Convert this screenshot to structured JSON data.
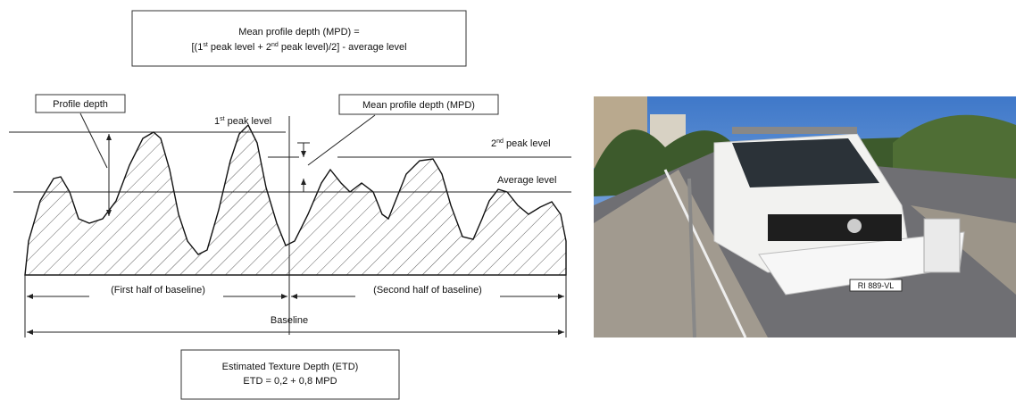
{
  "top_formula": {
    "line1": "Mean profile depth (MPD) =",
    "line2": {
      "pre": "[(1",
      "sup1": "st",
      "mid": " peak level + 2",
      "sup2": "nd",
      "post": " peak level)/2] - average level"
    }
  },
  "labels": {
    "profile_depth": "Profile depth",
    "mpd": "Mean profile depth (MPD)",
    "first_peak": {
      "pre": "1",
      "sup": "st",
      "post": " peak level"
    },
    "second_peak": {
      "pre": "2",
      "sup": "nd",
      "post": " peak level"
    },
    "average_level": "Average level",
    "first_half": "(First half of baseline)",
    "second_half": "(Second half of baseline)",
    "baseline": "Baseline"
  },
  "bottom_formula": {
    "line1": "Estimated Texture Depth (ETD)",
    "line2": "ETD = 0,2 + 0,8 MPD"
  },
  "photo": {
    "plate": "RI 889-VL"
  }
}
